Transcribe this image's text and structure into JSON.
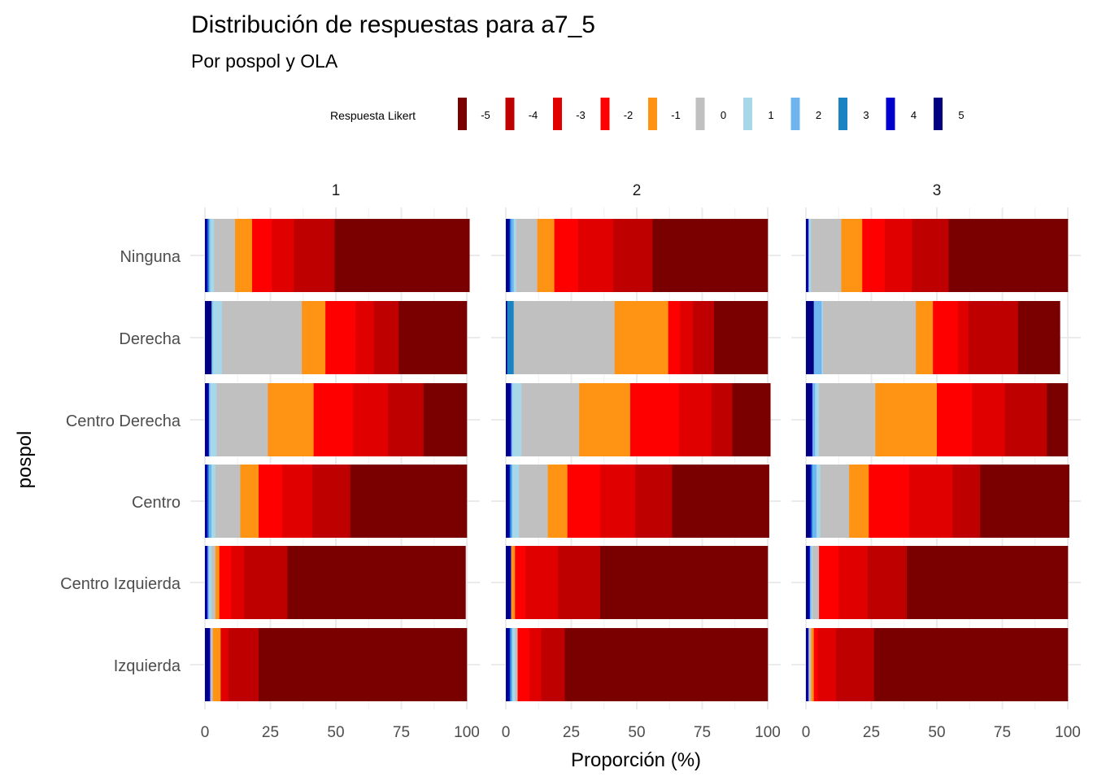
{
  "title": "Distribución de respuestas para a7_5",
  "subtitle": "Por pospol y OLA",
  "chart_data": {
    "type": "bar",
    "orientation": "horizontal",
    "stacked": true,
    "title": "Distribución de respuestas para a7_5",
    "subtitle": "Por pospol y OLA",
    "xlabel": "Proporción (%)",
    "ylabel": "pospol",
    "xlim": [
      0,
      100
    ],
    "xticks": [
      "0",
      "25",
      "50",
      "75",
      "100"
    ],
    "grid": true,
    "legend": {
      "title": "Respuesta Likert",
      "position": "top",
      "levels": [
        "-5",
        "-4",
        "-3",
        "-2",
        "-1",
        "0",
        "1",
        "2",
        "3",
        "4",
        "5"
      ],
      "colors": [
        "#7a0000",
        "#bf0000",
        "#e00000",
        "#ff0000",
        "#ff9414",
        "#c0c0c0",
        "#a6d8ea",
        "#6eb4ef",
        "#1a83c4",
        "#0000cc",
        "#000080"
      ]
    },
    "categories": [
      "Ninguna",
      "Derecha",
      "Centro Derecha",
      "Centro",
      "Centro Izquierda",
      "Izquierda"
    ],
    "facets": [
      {
        "label": "1",
        "rows": [
          [
            51.5,
            15.5,
            8.5,
            7.5,
            6.5,
            8.0,
            1.5,
            0.5,
            0.5,
            0.5,
            0.5
          ],
          [
            26.0,
            9.5,
            7.0,
            11.5,
            9.0,
            30.5,
            3.5,
            0.5,
            0.0,
            0.0,
            2.5
          ],
          [
            16.5,
            13.5,
            13.5,
            15.0,
            17.5,
            19.5,
            2.5,
            0.5,
            0.0,
            0.5,
            1.0
          ],
          [
            44.5,
            14.5,
            11.5,
            9.0,
            7.0,
            9.5,
            1.5,
            1.0,
            0.5,
            0.5,
            0.5
          ],
          [
            68.0,
            16.5,
            5.0,
            4.5,
            1.5,
            1.5,
            1.0,
            0.5,
            0.0,
            0.5,
            0.5
          ],
          [
            79.5,
            11.5,
            3.0,
            0.0,
            3.0,
            1.0,
            0.0,
            0.0,
            0.0,
            0.5,
            1.5
          ]
        ]
      },
      {
        "label": "2",
        "rows": [
          [
            44.0,
            15.0,
            13.5,
            9.0,
            6.5,
            8.0,
            1.0,
            1.0,
            0.5,
            0.5,
            1.0
          ],
          [
            20.5,
            8.0,
            5.0,
            4.5,
            20.5,
            38.5,
            0.0,
            0.0,
            2.5,
            0.0,
            0.5
          ],
          [
            14.5,
            8.0,
            12.5,
            18.5,
            19.5,
            22.0,
            3.5,
            0.5,
            0.0,
            0.5,
            1.5
          ],
          [
            37.0,
            14.0,
            13.5,
            12.5,
            7.5,
            11.0,
            2.5,
            0.5,
            0.5,
            0.5,
            1.0
          ],
          [
            64.0,
            16.0,
            12.5,
            4.0,
            1.5,
            0.0,
            0.0,
            0.0,
            0.0,
            0.5,
            1.5
          ],
          [
            77.5,
            9.0,
            4.5,
            4.5,
            0.0,
            1.0,
            1.0,
            0.5,
            0.5,
            0.5,
            1.0
          ]
        ]
      },
      {
        "label": "3",
        "rows": [
          [
            45.5,
            14.0,
            10.5,
            8.5,
            8.0,
            11.5,
            1.0,
            0.0,
            0.0,
            0.5,
            0.5
          ],
          [
            16.0,
            19.0,
            4.0,
            9.5,
            6.5,
            35.5,
            0.5,
            3.0,
            0.0,
            0.0,
            3.0
          ],
          [
            8.0,
            16.0,
            12.5,
            13.5,
            23.5,
            21.5,
            1.5,
            1.0,
            0.0,
            0.5,
            2.0
          ],
          [
            34.0,
            10.5,
            16.5,
            15.5,
            7.5,
            11.0,
            1.5,
            1.5,
            0.5,
            0.5,
            1.5
          ],
          [
            61.5,
            15.0,
            11.0,
            7.5,
            0.0,
            2.5,
            0.5,
            0.5,
            0.0,
            0.5,
            1.0
          ],
          [
            74.0,
            14.5,
            7.0,
            1.5,
            1.0,
            1.0,
            0.0,
            0.0,
            0.0,
            0.5,
            0.5
          ]
        ]
      }
    ]
  }
}
